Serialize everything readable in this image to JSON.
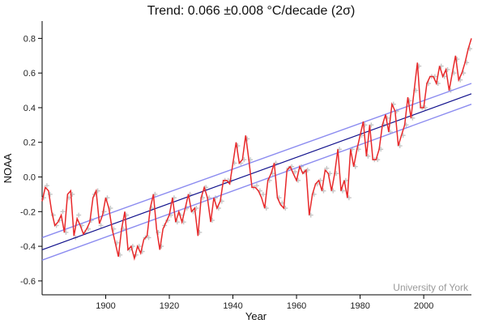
{
  "chart_data": {
    "type": "line",
    "title": "Trend: 0.066 ±0.008 °C/decade (2σ)",
    "xlabel": "Year",
    "ylabel": "NOAA",
    "watermark": "University of York",
    "xlim": [
      1880,
      2015
    ],
    "ylim": [
      -0.68,
      0.9
    ],
    "x_ticks": [
      1900,
      1920,
      1940,
      1960,
      1980,
      2000
    ],
    "y_ticks": [
      -0.6,
      -0.4,
      -0.2,
      0.0,
      0.2,
      0.4,
      0.6,
      0.8
    ],
    "y_tick_labels": [
      "-0.6",
      "-0.4",
      "-0.2",
      "0.0",
      "0.2",
      "0.4",
      "0.6",
      "0.8"
    ],
    "grid": false,
    "colors": {
      "monthly_points": "#c6c6c6",
      "running_mean": "#e8282a",
      "trend": "#10108c",
      "trend_bounds": "#8c8cf0"
    },
    "series": [
      {
        "kind": "points",
        "x": [
          1880.5,
          1881.5,
          1882.5,
          1883.5,
          1884.5,
          1885.5,
          1886.5,
          1887.5,
          1888.5,
          1889.5,
          1890.5,
          1891.5,
          1892.5,
          1893.5,
          1894.5,
          1895.5,
          1896.5,
          1897.5,
          1898.5,
          1899.5,
          1900.5,
          1901.5,
          1902.5,
          1903.5,
          1904.5,
          1905.5,
          1906.5,
          1907.5,
          1908.5,
          1909.5,
          1910.5,
          1911.5,
          1912.5,
          1913.5,
          1914.5,
          1915.5,
          1916.5,
          1917.5,
          1918.5,
          1919.5,
          1920.5,
          1921.5,
          1922.5,
          1923.5,
          1924.5,
          1925.5,
          1926.5,
          1927.5,
          1928.5,
          1929.5,
          1930.5,
          1931.5,
          1932.5,
          1933.5,
          1934.5,
          1935.5,
          1936.5,
          1937.5,
          1938.5,
          1939.5,
          1940.5,
          1941.5,
          1942.5,
          1943.5,
          1944.5,
          1945.5,
          1946.5,
          1947.5,
          1948.5,
          1949.5,
          1950.5,
          1951.5,
          1952.5,
          1953.5,
          1954.5,
          1955.5,
          1956.5,
          1957.5,
          1958.5,
          1959.5,
          1960.5,
          1961.5,
          1962.5,
          1963.5,
          1964.5,
          1965.5,
          1966.5,
          1967.5,
          1968.5,
          1969.5,
          1970.5,
          1971.5,
          1972.5,
          1973.5,
          1974.5,
          1975.5,
          1976.5,
          1977.5,
          1978.5,
          1979.5,
          1980.5,
          1981.5,
          1982.5,
          1983.5,
          1984.5,
          1985.5,
          1986.5,
          1987.5,
          1988.5,
          1989.5,
          1990.5,
          1991.5,
          1992.5,
          1993.5,
          1994.5,
          1995.5,
          1996.5,
          1997.5,
          1998.5,
          1999.5,
          2000.5,
          2001.5,
          2002.5,
          2003.5,
          2004.5,
          2005.5,
          2006.5,
          2007.5,
          2008.5,
          2009.5,
          2010.5,
          2011.5,
          2012.5,
          2013.5,
          2014.5
        ],
        "y": [
          -0.12,
          -0.05,
          -0.1,
          -0.22,
          -0.28,
          -0.25,
          -0.2,
          -0.32,
          -0.12,
          -0.1,
          -0.35,
          -0.22,
          -0.28,
          -0.32,
          -0.3,
          -0.25,
          -0.1,
          -0.08,
          -0.28,
          -0.2,
          -0.12,
          -0.18,
          -0.3,
          -0.38,
          -0.45,
          -0.3,
          -0.22,
          -0.42,
          -0.4,
          -0.45,
          -0.4,
          -0.43,
          -0.35,
          -0.35,
          -0.18,
          -0.1,
          -0.32,
          -0.4,
          -0.28,
          -0.25,
          -0.22,
          -0.12,
          -0.26,
          -0.22,
          -0.26,
          -0.18,
          -0.1,
          -0.2,
          -0.18,
          -0.32,
          -0.12,
          -0.06,
          -0.12,
          -0.25,
          -0.12,
          -0.18,
          -0.14,
          -0.02,
          -0.02,
          -0.02,
          0.08,
          0.18,
          0.08,
          0.1,
          0.22,
          0.1,
          -0.06,
          -0.05,
          -0.08,
          -0.1,
          -0.18,
          -0.02,
          0.02,
          0.08,
          -0.12,
          -0.15,
          -0.18,
          0.05,
          0.06,
          0.03,
          -0.02,
          0.06,
          0.03,
          0.04,
          -0.22,
          -0.1,
          -0.04,
          -0.02,
          -0.08,
          0.05,
          0.02,
          -0.08,
          0.02,
          0.16,
          -0.08,
          -0.02,
          -0.12,
          0.16,
          0.06,
          0.16,
          0.24,
          0.3,
          0.12,
          0.3,
          0.1,
          0.1,
          0.16,
          0.3,
          0.34,
          0.26,
          0.42,
          0.38,
          0.18,
          0.24,
          0.3,
          0.44,
          0.34,
          0.5,
          0.64,
          0.4,
          0.4,
          0.54,
          0.58,
          0.58,
          0.54,
          0.64,
          0.58,
          0.62,
          0.5,
          0.6,
          0.68,
          0.56,
          0.6,
          0.66,
          0.74
        ]
      },
      {
        "kind": "running-mean",
        "x": [
          1880.0,
          1881.0,
          1882.0,
          1883.0,
          1884.0,
          1885.0,
          1886.0,
          1887.0,
          1888.0,
          1889.0,
          1890.0,
          1891.0,
          1892.0,
          1893.0,
          1894.0,
          1895.0,
          1896.0,
          1897.0,
          1898.0,
          1899.0,
          1900.0,
          1901.0,
          1902.0,
          1903.0,
          1904.0,
          1905.0,
          1906.0,
          1907.0,
          1908.0,
          1909.0,
          1910.0,
          1911.0,
          1912.0,
          1913.0,
          1914.0,
          1915.0,
          1916.0,
          1917.0,
          1918.0,
          1919.0,
          1920.0,
          1921.0,
          1922.0,
          1923.0,
          1924.0,
          1925.0,
          1926.0,
          1927.0,
          1928.0,
          1929.0,
          1930.0,
          1931.0,
          1932.0,
          1933.0,
          1934.0,
          1935.0,
          1936.0,
          1937.0,
          1938.0,
          1939.0,
          1940.0,
          1941.0,
          1942.0,
          1943.0,
          1944.0,
          1945.0,
          1946.0,
          1947.0,
          1948.0,
          1949.0,
          1950.0,
          1951.0,
          1952.0,
          1953.0,
          1954.0,
          1955.0,
          1956.0,
          1957.0,
          1958.0,
          1959.0,
          1960.0,
          1961.0,
          1962.0,
          1963.0,
          1964.0,
          1965.0,
          1966.0,
          1967.0,
          1968.0,
          1969.0,
          1970.0,
          1971.0,
          1972.0,
          1973.0,
          1974.0,
          1975.0,
          1976.0,
          1977.0,
          1978.0,
          1979.0,
          1980.0,
          1981.0,
          1982.0,
          1983.0,
          1984.0,
          1985.0,
          1986.0,
          1987.0,
          1988.0,
          1989.0,
          1990.0,
          1991.0,
          1992.0,
          1993.0,
          1994.0,
          1995.0,
          1996.0,
          1997.0,
          1998.0,
          1999.0,
          2000.0,
          2001.0,
          2002.0,
          2003.0,
          2004.0,
          2005.0,
          2006.0,
          2007.0,
          2008.0,
          2009.0,
          2010.0,
          2011.0,
          2012.0,
          2013.0,
          2014.0,
          2015.0
        ],
        "y": [
          -0.14,
          -0.06,
          -0.08,
          -0.2,
          -0.28,
          -0.26,
          -0.22,
          -0.32,
          -0.1,
          -0.08,
          -0.34,
          -0.24,
          -0.28,
          -0.33,
          -0.3,
          -0.26,
          -0.12,
          -0.08,
          -0.27,
          -0.22,
          -0.12,
          -0.18,
          -0.3,
          -0.38,
          -0.46,
          -0.3,
          -0.2,
          -0.42,
          -0.4,
          -0.47,
          -0.4,
          -0.44,
          -0.36,
          -0.34,
          -0.18,
          -0.1,
          -0.3,
          -0.42,
          -0.3,
          -0.26,
          -0.22,
          -0.12,
          -0.26,
          -0.2,
          -0.26,
          -0.18,
          -0.1,
          -0.2,
          -0.18,
          -0.34,
          -0.12,
          -0.06,
          -0.12,
          -0.26,
          -0.12,
          -0.18,
          -0.14,
          -0.02,
          -0.02,
          -0.04,
          0.08,
          0.2,
          0.08,
          0.1,
          0.24,
          0.1,
          -0.06,
          -0.06,
          -0.08,
          -0.12,
          -0.18,
          -0.02,
          0.02,
          0.08,
          -0.12,
          -0.16,
          -0.18,
          0.04,
          0.06,
          0.02,
          -0.02,
          0.06,
          0.02,
          0.04,
          -0.22,
          -0.1,
          -0.04,
          -0.02,
          -0.08,
          0.04,
          0.02,
          -0.08,
          0.02,
          0.16,
          -0.08,
          -0.02,
          -0.12,
          0.16,
          0.06,
          0.16,
          0.24,
          0.32,
          0.12,
          0.3,
          0.1,
          0.1,
          0.16,
          0.3,
          0.36,
          0.26,
          0.42,
          0.38,
          0.18,
          0.24,
          0.3,
          0.46,
          0.34,
          0.5,
          0.66,
          0.4,
          0.4,
          0.54,
          0.58,
          0.58,
          0.54,
          0.64,
          0.58,
          0.62,
          0.5,
          0.6,
          0.7,
          0.56,
          0.6,
          0.66,
          0.74,
          0.8
        ]
      },
      {
        "kind": "trend",
        "x": [
          1880,
          2015
        ],
        "y": [
          -0.42,
          0.48
        ]
      },
      {
        "kind": "trend-upper",
        "x": [
          1880,
          2015
        ],
        "y": [
          -0.35,
          0.54
        ]
      },
      {
        "kind": "trend-lower",
        "x": [
          1880,
          2015
        ],
        "y": [
          -0.48,
          0.42
        ]
      }
    ]
  }
}
